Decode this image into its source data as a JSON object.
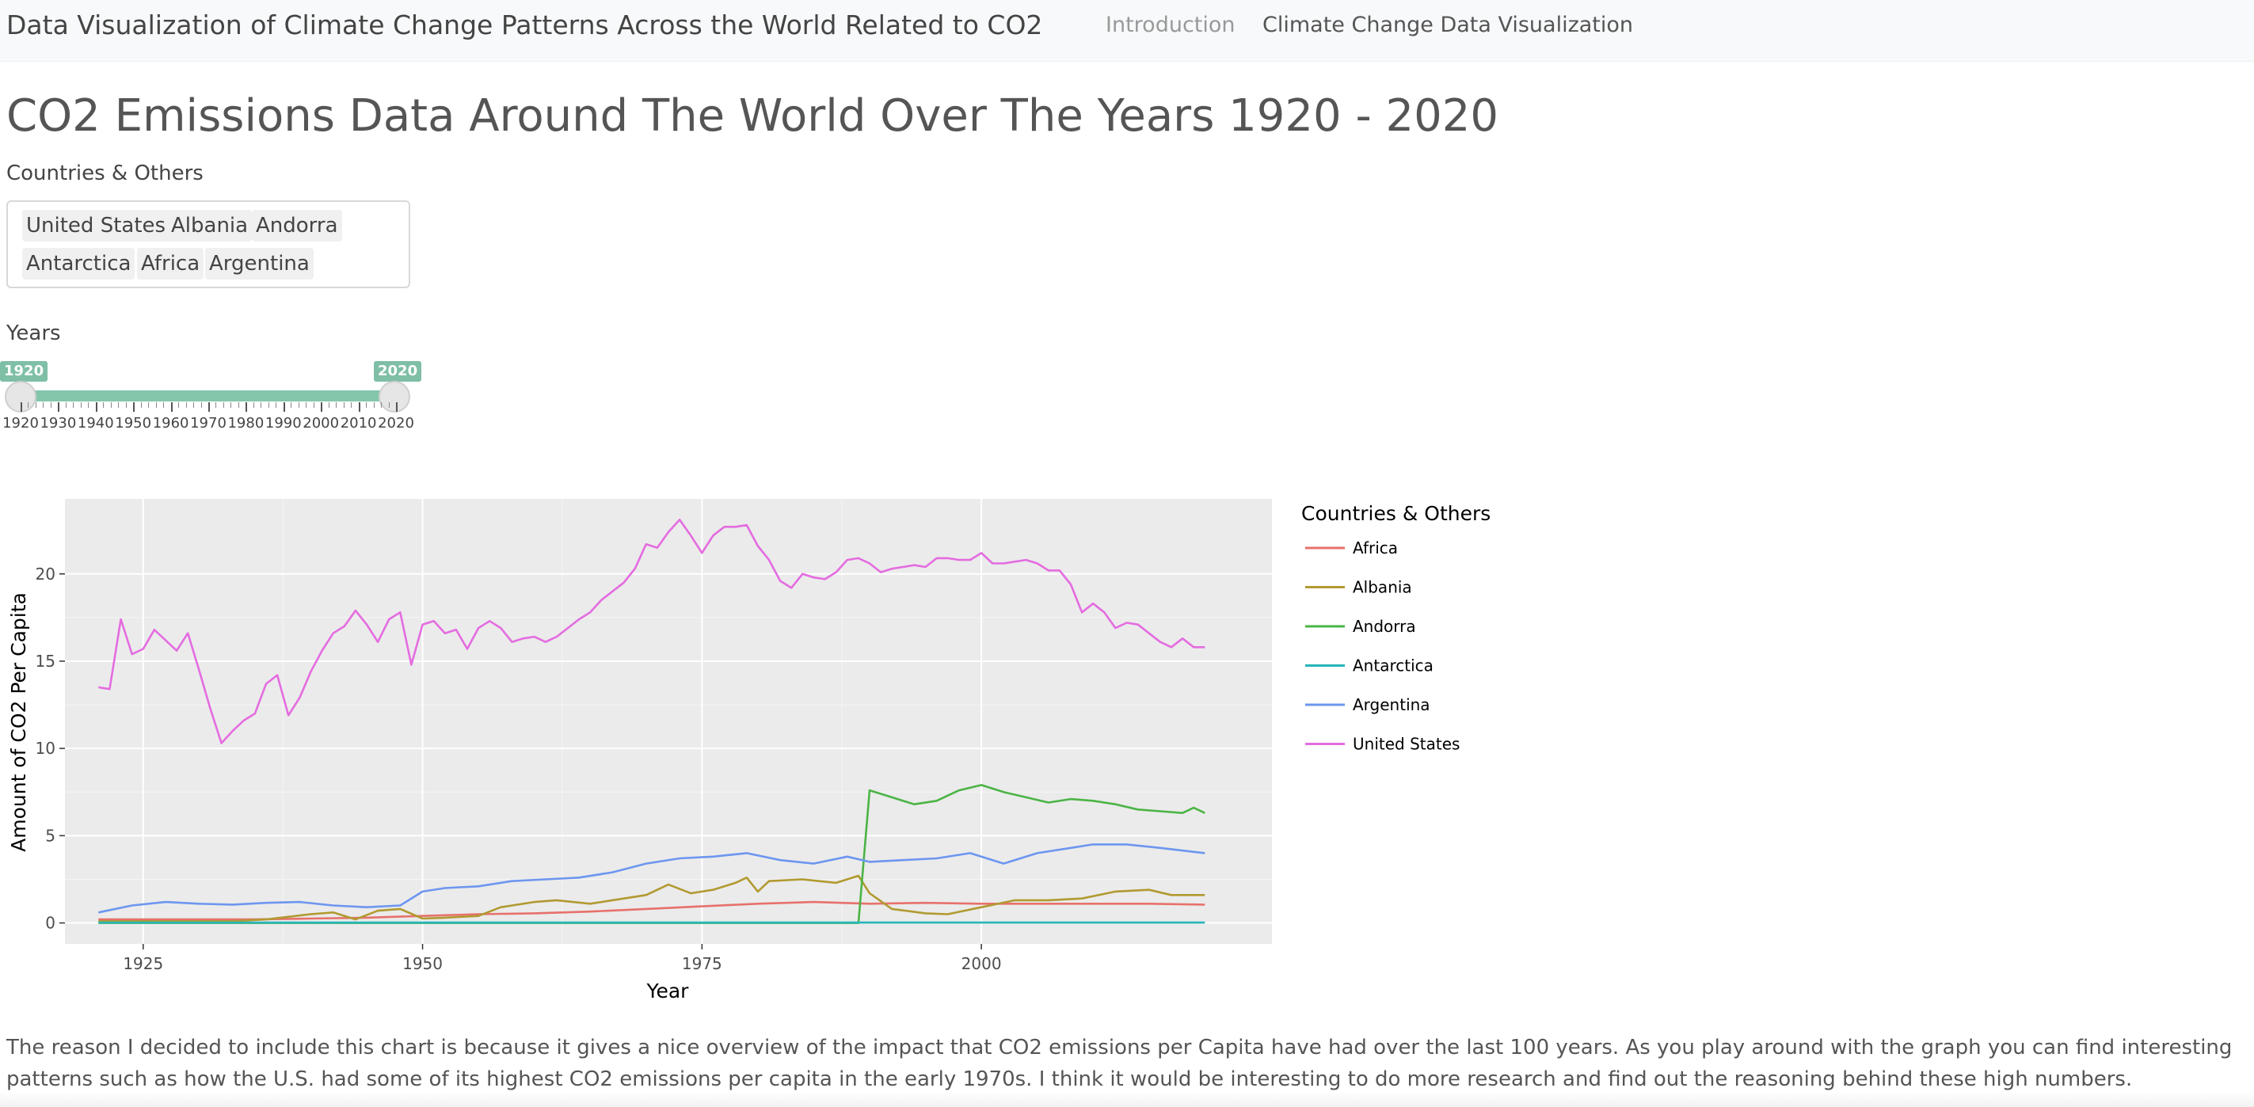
{
  "navbar": {
    "brand": "Data Visualization of Climate Change Patterns Across the World Related to CO2",
    "links": [
      "Introduction",
      "Climate Change Data Visualization"
    ]
  },
  "page": {
    "title": "CO2 Emissions Data Around The World Over The Years 1920 - 2020",
    "countries_label": "Countries & Others",
    "selected_countries": [
      "United States",
      "Albania",
      "Andorra",
      "Antarctica",
      "Africa",
      "Argentina"
    ],
    "years_label": "Years",
    "slider": {
      "min": 1920,
      "max": 2020,
      "from": 1920,
      "to": 2020,
      "tick_labels": [
        "1920",
        "1930",
        "1940",
        "1950",
        "1960",
        "1970",
        "1980",
        "1990",
        "2000",
        "2010",
        "2020"
      ]
    },
    "description": "The reason I decided to include this chart is because it gives a nice overview of the impact that CO2 emissions per Capita have had over the last 100 years. As you play around with the graph you can find interesting patterns such as how the U.S. had some of its highest CO2 emissions per capita in the early 1970s. I think it would be interesting to do more research and find out the reasoning behind these high numbers."
  },
  "colors": {
    "accent": "#7fbfa5",
    "panel": "#ebebeb",
    "Africa": "#e7716b",
    "Albania": "#b19a31",
    "Andorra": "#4bb445",
    "Antarctica": "#26b5b9",
    "Argentina": "#6d96f0",
    "United States": "#e46ce0"
  },
  "chart_data": {
    "type": "line",
    "xlabel": "Year",
    "ylabel": "Amount of CO2 Per Capita",
    "legend_title": "Countries & Others",
    "legend_position": "right",
    "grid": true,
    "xlim": [
      1918,
      2026
    ],
    "ylim": [
      -1.2,
      24.3
    ],
    "xticks": [
      1925,
      1950,
      1975,
      2000
    ],
    "yticks": [
      0,
      5,
      10,
      15,
      20
    ],
    "series": [
      {
        "name": "Africa",
        "x": [
          1921,
          1925,
          1930,
          1935,
          1940,
          1945,
          1950,
          1955,
          1960,
          1965,
          1970,
          1975,
          1980,
          1985,
          1990,
          1995,
          2000,
          2005,
          2010,
          2015,
          2020
        ],
        "y": [
          0.2,
          0.2,
          0.2,
          0.2,
          0.25,
          0.3,
          0.4,
          0.5,
          0.55,
          0.65,
          0.8,
          0.95,
          1.1,
          1.2,
          1.1,
          1.15,
          1.1,
          1.1,
          1.1,
          1.1,
          1.05
        ]
      },
      {
        "name": "Albania",
        "x": [
          1921,
          1925,
          1930,
          1933,
          1936,
          1938,
          1940,
          1942,
          1944,
          1946,
          1948,
          1950,
          1952,
          1955,
          1957,
          1960,
          1962,
          1965,
          1968,
          1970,
          1972,
          1974,
          1976,
          1978,
          1979,
          1980,
          1981,
          1984,
          1987,
          1989,
          1990,
          1992,
          1995,
          1997,
          2000,
          2003,
          2006,
          2009,
          2012,
          2015,
          2017,
          2020
        ],
        "y": [
          0.1,
          0.1,
          0.1,
          0.1,
          0.2,
          0.35,
          0.5,
          0.6,
          0.2,
          0.7,
          0.8,
          0.25,
          0.3,
          0.4,
          0.9,
          1.2,
          1.3,
          1.1,
          1.4,
          1.6,
          2.2,
          1.7,
          1.9,
          2.3,
          2.6,
          1.8,
          2.4,
          2.5,
          2.3,
          2.7,
          1.7,
          0.8,
          0.55,
          0.5,
          0.9,
          1.3,
          1.3,
          1.4,
          1.8,
          1.9,
          1.6,
          1.6
        ]
      },
      {
        "name": "Andorra",
        "x": [
          1921,
          1989,
          1990,
          1992,
          1994,
          1996,
          1998,
          2000,
          2002,
          2004,
          2006,
          2008,
          2010,
          2012,
          2014,
          2016,
          2018,
          2019,
          2020
        ],
        "y": [
          0,
          0,
          7.6,
          7.2,
          6.8,
          7.0,
          7.6,
          7.9,
          7.5,
          7.2,
          6.9,
          7.1,
          7.0,
          6.8,
          6.5,
          6.4,
          6.3,
          6.6,
          6.3
        ]
      },
      {
        "name": "Antarctica",
        "x": [
          1921,
          2020
        ],
        "y": [
          0.02,
          0.02
        ]
      },
      {
        "name": "Argentina",
        "x": [
          1921,
          1924,
          1927,
          1930,
          1933,
          1936,
          1939,
          1942,
          1945,
          1948,
          1950,
          1952,
          1955,
          1958,
          1961,
          1964,
          1967,
          1970,
          1973,
          1976,
          1979,
          1982,
          1985,
          1988,
          1990,
          1993,
          1996,
          1999,
          2002,
          2005,
          2008,
          2010,
          2013,
          2016,
          2020
        ],
        "y": [
          0.6,
          1.0,
          1.2,
          1.1,
          1.05,
          1.15,
          1.2,
          1.0,
          0.9,
          1.0,
          1.8,
          2.0,
          2.1,
          2.4,
          2.5,
          2.6,
          2.9,
          3.4,
          3.7,
          3.8,
          4.0,
          3.6,
          3.4,
          3.8,
          3.5,
          3.6,
          3.7,
          4.0,
          3.4,
          4.0,
          4.3,
          4.5,
          4.5,
          4.3,
          4.0
        ]
      },
      {
        "name": "United States",
        "x": [
          1921,
          1922,
          1923,
          1924,
          1925,
          1926,
          1928,
          1929,
          1930,
          1931,
          1932,
          1933,
          1934,
          1935,
          1936,
          1937,
          1938,
          1939,
          1940,
          1941,
          1942,
          1943,
          1944,
          1945,
          1946,
          1947,
          1948,
          1949,
          1950,
          1951,
          1952,
          1953,
          1954,
          1955,
          1956,
          1957,
          1958,
          1959,
          1960,
          1961,
          1962,
          1963,
          1964,
          1965,
          1966,
          1967,
          1968,
          1969,
          1970,
          1971,
          1972,
          1973,
          1974,
          1975,
          1976,
          1977,
          1978,
          1979,
          1980,
          1981,
          1982,
          1983,
          1984,
          1985,
          1986,
          1987,
          1988,
          1989,
          1990,
          1991,
          1992,
          1993,
          1994,
          1995,
          1996,
          1997,
          1998,
          1999,
          2000,
          2001,
          2002,
          2003,
          2004,
          2005,
          2006,
          2007,
          2008,
          2009,
          2010,
          2011,
          2012,
          2013,
          2014,
          2015,
          2016,
          2017,
          2018,
          2019,
          2020
        ],
        "y": [
          13.5,
          13.4,
          17.4,
          15.4,
          15.7,
          16.8,
          15.6,
          16.6,
          14.5,
          12.3,
          10.3,
          11.0,
          11.6,
          12.0,
          13.7,
          14.2,
          11.9,
          12.9,
          14.4,
          15.6,
          16.6,
          17.0,
          17.9,
          17.1,
          16.1,
          17.4,
          17.8,
          14.8,
          17.1,
          17.3,
          16.6,
          16.8,
          15.7,
          16.9,
          17.3,
          16.9,
          16.1,
          16.3,
          16.4,
          16.1,
          16.4,
          16.9,
          17.4,
          17.8,
          18.5,
          19.0,
          19.5,
          20.3,
          21.7,
          21.5,
          22.4,
          23.1,
          22.2,
          21.2,
          22.2,
          22.7,
          22.7,
          22.8,
          21.6,
          20.8,
          19.6,
          19.2,
          20.0,
          19.8,
          19.7,
          20.1,
          20.8,
          20.9,
          20.6,
          20.1,
          20.3,
          20.4,
          20.5,
          20.4,
          20.9,
          20.9,
          20.8,
          20.8,
          21.2,
          20.6,
          20.6,
          20.7,
          20.8,
          20.6,
          20.2,
          20.2,
          19.4,
          17.8,
          18.3,
          17.8,
          16.9,
          17.2,
          17.1,
          16.6,
          16.1,
          15.8,
          16.3,
          15.8,
          15.8
        ]
      }
    ]
  }
}
